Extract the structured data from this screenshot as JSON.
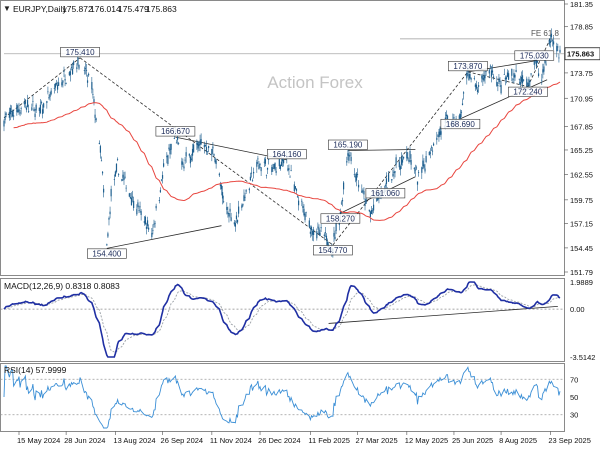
{
  "chart_data": [
    {
      "type": "candlestick",
      "panel": "price",
      "title": "EURJPY,Daily",
      "ohlc_header": [
        "175.872",
        "176.014",
        "175.479",
        "175.863"
      ],
      "y_ticks": [
        "181.35",
        "178.85",
        "176.25",
        "173.75",
        "170.95",
        "167.85",
        "165.25",
        "162.55",
        "159.75",
        "157.15",
        "154.45",
        "151.79"
      ],
      "ylim": [
        151.79,
        181.35
      ],
      "current_price": "175.863",
      "fe_label": "FE 61.8",
      "fe_level": 177.5,
      "watermark": "Action Forex",
      "price_labels": [
        {
          "text": "175.410",
          "date": "2024-07-11",
          "value": 175.41
        },
        {
          "text": "154.400",
          "date": "2024-08-05",
          "value": 154.4
        },
        {
          "text": "166.670",
          "date": "2024-10-08",
          "value": 166.67
        },
        {
          "text": "164.160",
          "date": "2025-01-20",
          "value": 164.16
        },
        {
          "text": "165.190",
          "date": "2025-03-18",
          "value": 165.19
        },
        {
          "text": "158.270",
          "date": "2025-03-11",
          "value": 158.27
        },
        {
          "text": "161.060",
          "date": "2025-04-22",
          "value": 161.06
        },
        {
          "text": "154.770",
          "date": "2025-03-04",
          "value": 154.77
        },
        {
          "text": "173.870",
          "date": "2025-07-08",
          "value": 173.87
        },
        {
          "text": "168.690",
          "date": "2025-07-01",
          "value": 168.69
        },
        {
          "text": "175.030",
          "date": "2025-09-08",
          "value": 175.03
        },
        {
          "text": "172.240",
          "date": "2025-09-02",
          "value": 172.24
        }
      ],
      "ma_color": "#e8463f",
      "candle_color": "#1e5f8f",
      "trendline_color": "#2b2b2b"
    },
    {
      "type": "line",
      "panel": "macd",
      "label": "MACD(12,26,9) 0.8318 0.8083",
      "y_ticks": [
        "1.9889",
        "0.00",
        "-3.5142"
      ],
      "ylim": [
        -3.5142,
        1.9889
      ],
      "series": [
        {
          "name": "MACD",
          "color": "#1f2fa3"
        },
        {
          "name": "Signal",
          "color": "#9aa0a6"
        }
      ]
    },
    {
      "type": "line",
      "panel": "rsi",
      "label": "RSI(14) 57.9999",
      "y_ticks": [
        "70",
        "50",
        "30"
      ],
      "ylim": [
        15,
        85
      ],
      "levels": [
        70,
        30
      ],
      "series": [
        {
          "name": "RSI",
          "color": "#3b8fd6"
        }
      ]
    }
  ],
  "x_ticks": [
    "15 May 2024",
    "28 Jun 2024",
    "13 Aug 2024",
    "26 Sep 2024",
    "11 Nov 2024",
    "26 Dec 2024",
    "11 Feb 2025",
    "27 Mar 2025",
    "12 May 2025",
    "25 Jun 2025",
    "8 Aug 2025",
    "23 Sep 2025"
  ]
}
